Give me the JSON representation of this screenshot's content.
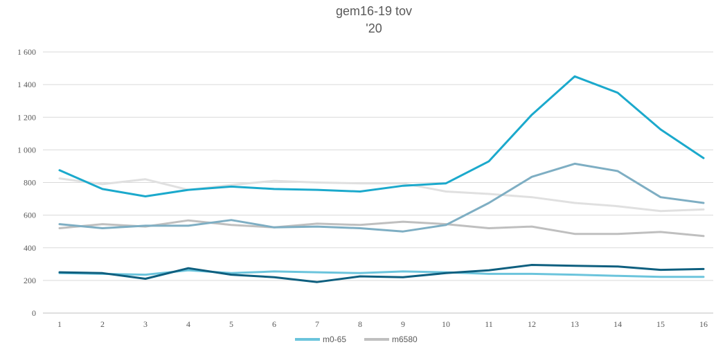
{
  "chart_data": {
    "type": "line",
    "title": "gem16-19 tov",
    "subtitle": "'20",
    "xlabel": "",
    "ylabel": "",
    "x": [
      1,
      2,
      3,
      4,
      5,
      6,
      7,
      8,
      9,
      10,
      11,
      12,
      13,
      14,
      15,
      16
    ],
    "ylim": [
      0,
      1600
    ],
    "yticks": [
      0,
      200,
      400,
      600,
      800,
      1000,
      1200,
      1400,
      1600
    ],
    "ytick_labels": [
      "0",
      "200",
      "400",
      "600",
      "800",
      "1 000",
      "1 200",
      "1 400",
      "1 600"
    ],
    "grid": true,
    "legend": "bottom",
    "series": [
      {
        "name": "m0-65",
        "color": "#6bc4dc",
        "values": [
          245,
          240,
          235,
          262,
          245,
          255,
          250,
          245,
          255,
          250,
          240,
          240,
          235,
          228,
          222,
          222
        ]
      },
      {
        "name": "m6580",
        "color": "#bfbfbf",
        "values": [
          520,
          545,
          530,
          568,
          540,
          525,
          548,
          540,
          560,
          545,
          520,
          530,
          485,
          485,
          497,
          472
        ]
      },
      {
        "name": "",
        "color": "#e0e0e0",
        "values": [
          825,
          790,
          820,
          755,
          785,
          810,
          800,
          795,
          795,
          745,
          730,
          710,
          675,
          655,
          625,
          635
        ]
      },
      {
        "name": "",
        "color": "#7eaec3",
        "values": [
          545,
          520,
          535,
          535,
          570,
          525,
          530,
          520,
          500,
          540,
          675,
          835,
          915,
          870,
          710,
          675
        ]
      },
      {
        "name": "",
        "color": "#1ba9cc",
        "values": [
          875,
          760,
          715,
          755,
          775,
          760,
          755,
          745,
          780,
          795,
          930,
          1215,
          1450,
          1350,
          1125,
          950
        ]
      },
      {
        "name": "",
        "color": "#0e5f7f",
        "values": [
          250,
          245,
          210,
          275,
          235,
          220,
          190,
          225,
          220,
          245,
          262,
          295,
          290,
          285,
          265,
          270
        ]
      }
    ]
  }
}
